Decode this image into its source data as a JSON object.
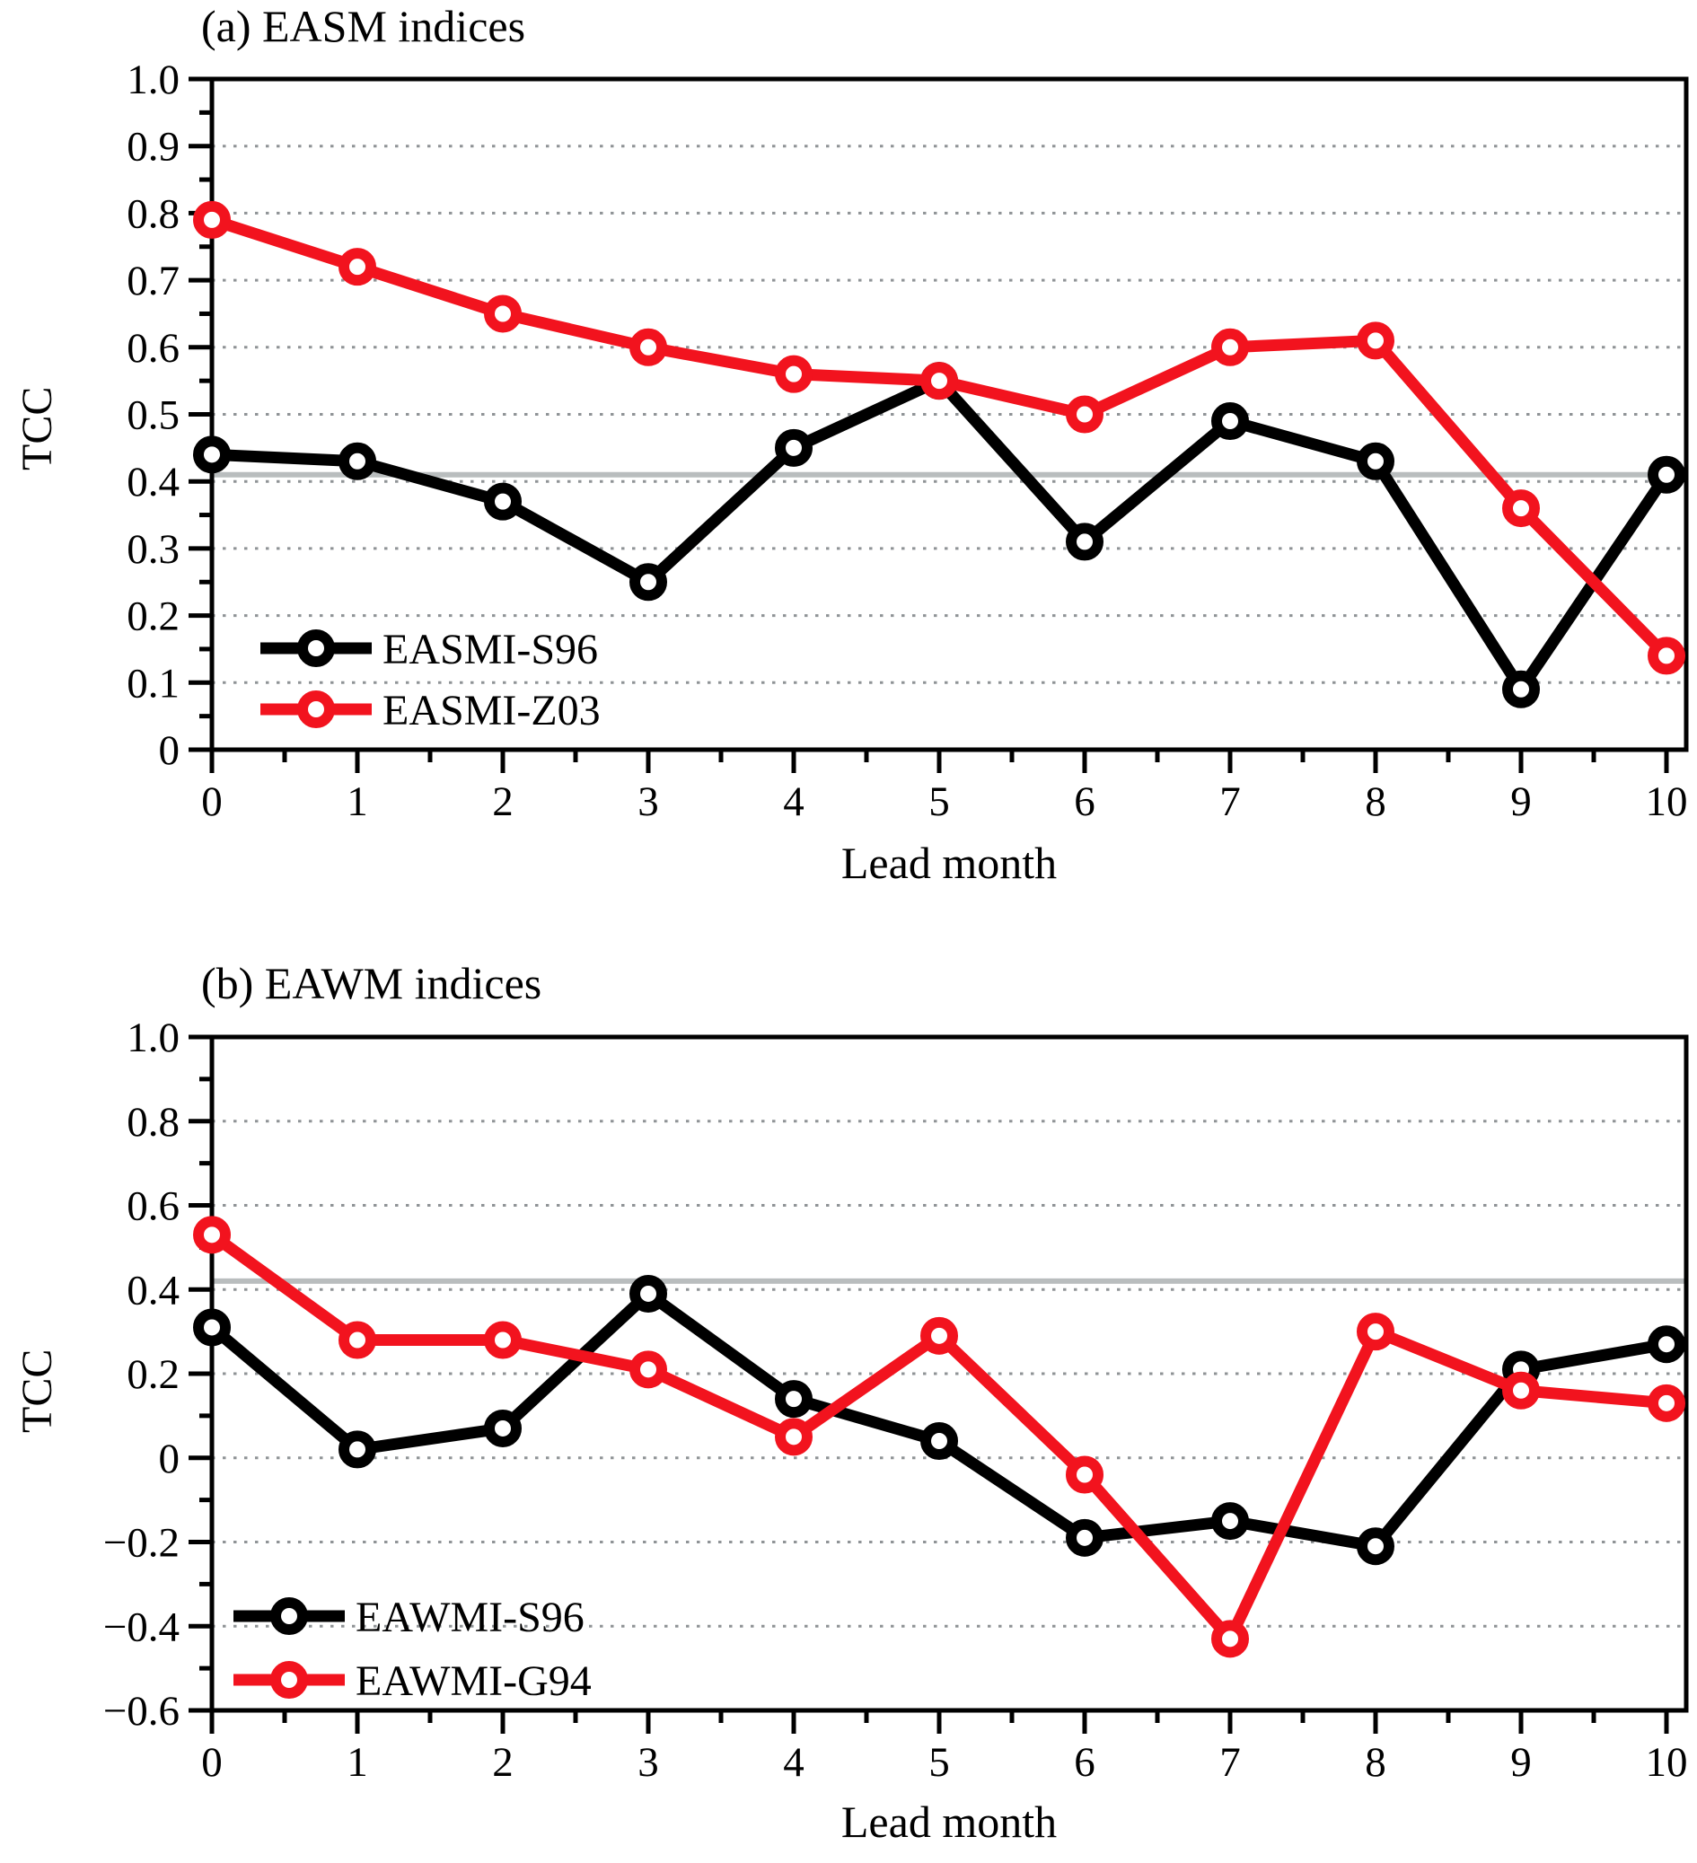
{
  "figure_bg": "#ffffff",
  "colors": {
    "black_series": "#000000",
    "red_series": "#f2131e",
    "ref_line": "#b9bdbe",
    "grid_dots": "#8f9396",
    "axis": "#000000",
    "text": "#000000"
  },
  "chart_data": [
    {
      "type": "line",
      "title": "(a) EASM indices",
      "xlabel": "Lead month",
      "ylabel": "TCC",
      "x": [
        0,
        1,
        2,
        3,
        4,
        5,
        6,
        7,
        8,
        9,
        10
      ],
      "xtick_labels": [
        "0",
        "1",
        "2",
        "3",
        "4",
        "5",
        "6",
        "7",
        "8",
        "9",
        "10"
      ],
      "xlim": [
        0,
        10.14
      ],
      "ylim": [
        0,
        1.0
      ],
      "yticks": [
        {
          "v": 1.0,
          "label": "1.0"
        },
        {
          "v": 0.9,
          "label": "0.9"
        },
        {
          "v": 0.8,
          "label": "0.8"
        },
        {
          "v": 0.7,
          "label": "0.7"
        },
        {
          "v": 0.6,
          "label": "0.6"
        },
        {
          "v": 0.5,
          "label": "0.5"
        },
        {
          "v": 0.4,
          "label": "0.4"
        },
        {
          "v": 0.3,
          "label": "0.3"
        },
        {
          "v": 0.2,
          "label": "0.2"
        },
        {
          "v": 0.1,
          "label": "0.1"
        },
        {
          "v": 0,
          "label": "0"
        }
      ],
      "y_minor_step": 0.05,
      "x_minor_step": 0.5,
      "grid_values": [
        0.1,
        0.2,
        0.3,
        0.4,
        0.5,
        0.6,
        0.7,
        0.8,
        0.9
      ],
      "grid_on": true,
      "ref_line": 0.41,
      "legend_position": "lower-left-inside",
      "series": [
        {
          "name": "EASMI-S96",
          "color_key": "black_series",
          "values": [
            0.44,
            0.43,
            0.37,
            0.25,
            0.45,
            0.55,
            0.31,
            0.49,
            0.43,
            0.09,
            0.41
          ]
        },
        {
          "name": "EASMI-Z03",
          "color_key": "red_series",
          "values": [
            0.79,
            0.72,
            0.65,
            0.6,
            0.56,
            0.55,
            0.5,
            0.6,
            0.61,
            0.36,
            0.14
          ]
        }
      ]
    },
    {
      "type": "line",
      "title": "(b) EAWM indices",
      "xlabel": "Lead month",
      "ylabel": "TCC",
      "x": [
        0,
        1,
        2,
        3,
        4,
        5,
        6,
        7,
        8,
        9,
        10
      ],
      "xtick_labels": [
        "0",
        "1",
        "2",
        "3",
        "4",
        "5",
        "6",
        "7",
        "8",
        "9",
        "10"
      ],
      "xlim": [
        0,
        10.14
      ],
      "ylim": [
        -0.6,
        1.0
      ],
      "yticks": [
        {
          "v": 1.0,
          "label": "1.0"
        },
        {
          "v": 0.8,
          "label": "0.8"
        },
        {
          "v": 0.6,
          "label": "0.6"
        },
        {
          "v": 0.4,
          "label": "0.4"
        },
        {
          "v": 0.2,
          "label": "0.2"
        },
        {
          "v": 0,
          "label": "0"
        },
        {
          "v": -0.2,
          "label": "−0.2"
        },
        {
          "v": -0.4,
          "label": "−0.4"
        },
        {
          "v": -0.6,
          "label": "−0.6"
        }
      ],
      "y_minor_step": 0.1,
      "x_minor_step": 0.5,
      "grid_values": [
        -0.4,
        -0.2,
        0,
        0.2,
        0.4,
        0.6,
        0.8
      ],
      "grid_on": true,
      "ref_line": 0.42,
      "legend_position": "lower-left-inside",
      "series": [
        {
          "name": "EAWMI-S96",
          "color_key": "black_series",
          "values": [
            0.31,
            0.02,
            0.07,
            0.39,
            0.14,
            0.04,
            -0.19,
            -0.15,
            -0.21,
            0.21,
            0.27
          ]
        },
        {
          "name": "EAWMI-G94",
          "color_key": "red_series",
          "values": [
            0.53,
            0.28,
            0.28,
            0.21,
            0.05,
            0.29,
            -0.04,
            -0.43,
            0.3,
            0.16,
            0.13
          ]
        }
      ]
    }
  ]
}
